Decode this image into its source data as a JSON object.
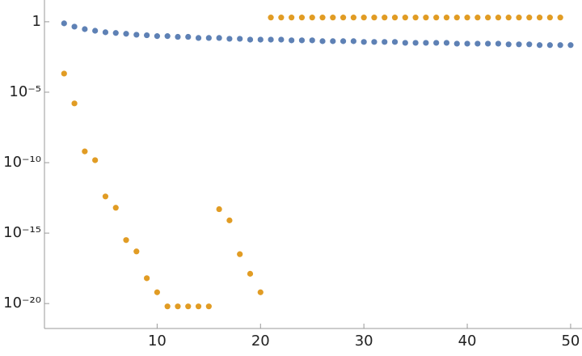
{
  "chart_data": {
    "type": "scatter",
    "log_y": true,
    "x": [
      1,
      2,
      3,
      4,
      5,
      6,
      7,
      8,
      9,
      10,
      11,
      12,
      13,
      14,
      15,
      16,
      17,
      18,
      19,
      20,
      21,
      22,
      23,
      24,
      25,
      26,
      27,
      28,
      29,
      30,
      31,
      32,
      33,
      34,
      35,
      36,
      37,
      38,
      39,
      40,
      41,
      42,
      43,
      44,
      45,
      46,
      47,
      48,
      49,
      50
    ],
    "series": [
      {
        "color": "#5e81b5",
        "values": [
          0.77,
          0.45,
          0.3,
          0.23,
          0.18,
          0.16,
          0.14,
          0.12,
          0.11,
          0.096,
          0.096,
          0.085,
          0.085,
          0.071,
          0.071,
          0.071,
          0.062,
          0.062,
          0.054,
          0.054,
          0.054,
          0.054,
          0.048,
          0.048,
          0.048,
          0.042,
          0.042,
          0.042,
          0.042,
          0.037,
          0.037,
          0.037,
          0.037,
          0.032,
          0.032,
          0.032,
          0.032,
          0.032,
          0.028,
          0.028,
          0.028,
          0.028,
          0.028,
          0.025,
          0.025,
          0.025,
          0.022,
          0.022,
          0.022,
          0.022
        ]
      },
      {
        "color": "#e19c24",
        "values": [
          0.00021,
          1.6e-06,
          6.3e-10,
          1.5e-10,
          4e-13,
          6.3e-14,
          3.2e-16,
          5e-17,
          6.3e-19,
          6.3e-20,
          6.3e-21,
          6.3e-21,
          6.3e-21,
          6.3e-21,
          6.3e-21,
          5e-14,
          8e-15,
          3.2e-17,
          1.3e-18,
          6.3e-20,
          2,
          2,
          2,
          2,
          2,
          2,
          2,
          2,
          2,
          2,
          2,
          2,
          2,
          2,
          2,
          2,
          2,
          2,
          2,
          2,
          2,
          2,
          2,
          2,
          2,
          2,
          2,
          2,
          2,
          null
        ]
      }
    ],
    "xlim": [
      -0.9,
      51.1
    ],
    "xticks": [
      10,
      20,
      30,
      40,
      50
    ],
    "ylim": [
      35,
      1.7e-22
    ],
    "yticks": [
      1,
      {
        "value": 1e-05,
        "label": "10⁻⁵"
      },
      {
        "value": 1e-10,
        "label": "10⁻¹⁰"
      },
      {
        "value": 1e-15,
        "label": "10⁻¹⁵"
      },
      {
        "value": 1e-20,
        "label": "10⁻²⁰"
      }
    ]
  }
}
